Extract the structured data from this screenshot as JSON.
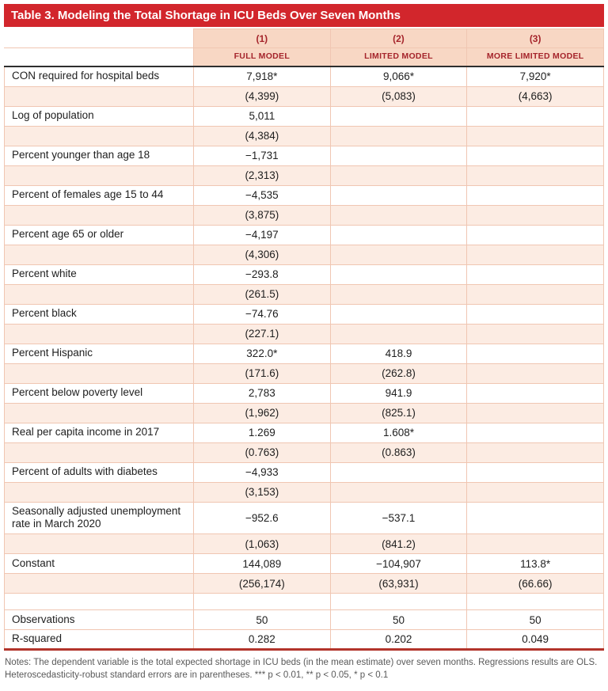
{
  "title": "Table 3. Modeling the Total Shortage in ICU Beds Over Seven Months",
  "columns": {
    "numbers": [
      "(1)",
      "(2)",
      "(3)"
    ],
    "models": [
      "FULL MODEL",
      "LIMITED MODEL",
      "MORE LIMITED MODEL"
    ]
  },
  "variables": [
    {
      "label": "CON required for hospital beds",
      "estimates": [
        "7,918*",
        "9,066*",
        "7,920*"
      ],
      "std_errors": [
        "(4,399)",
        "(5,083)",
        "(4,663)"
      ]
    },
    {
      "label": "Log of population",
      "estimates": [
        "5,011",
        "",
        ""
      ],
      "std_errors": [
        "(4,384)",
        "",
        ""
      ]
    },
    {
      "label": "Percent younger than age 18",
      "estimates": [
        "−1,731",
        "",
        ""
      ],
      "std_errors": [
        "(2,313)",
        "",
        ""
      ]
    },
    {
      "label": "Percent of females age 15 to 44",
      "estimates": [
        "−4,535",
        "",
        ""
      ],
      "std_errors": [
        "(3,875)",
        "",
        ""
      ]
    },
    {
      "label": "Percent age 65 or older",
      "estimates": [
        "−4,197",
        "",
        ""
      ],
      "std_errors": [
        "(4,306)",
        "",
        ""
      ]
    },
    {
      "label": "Percent white",
      "estimates": [
        "−293.8",
        "",
        ""
      ],
      "std_errors": [
        "(261.5)",
        "",
        ""
      ]
    },
    {
      "label": "Percent black",
      "estimates": [
        "−74.76",
        "",
        ""
      ],
      "std_errors": [
        "(227.1)",
        "",
        ""
      ]
    },
    {
      "label": "Percent Hispanic",
      "estimates": [
        "322.0*",
        "418.9",
        ""
      ],
      "std_errors": [
        "(171.6)",
        "(262.8)",
        ""
      ]
    },
    {
      "label": "Percent below poverty level",
      "estimates": [
        "2,783",
        "941.9",
        ""
      ],
      "std_errors": [
        "(1,962)",
        "(825.1)",
        ""
      ]
    },
    {
      "label": "Real per capita income in 2017",
      "estimates": [
        "1.269",
        "1.608*",
        ""
      ],
      "std_errors": [
        "(0.763)",
        "(0.863)",
        ""
      ]
    },
    {
      "label": "Percent of adults with diabetes",
      "estimates": [
        "−4,933",
        "",
        ""
      ],
      "std_errors": [
        "(3,153)",
        "",
        ""
      ]
    },
    {
      "label": "Seasonally adjusted unemployment rate in March 2020",
      "estimates": [
        "−952.6",
        "−537.1",
        ""
      ],
      "std_errors": [
        "(1,063)",
        "(841.2)",
        ""
      ]
    },
    {
      "label": "Constant",
      "estimates": [
        "144,089",
        "−104,907",
        "113.8*"
      ],
      "std_errors": [
        "(256,174)",
        "(63,931)",
        "(66.66)"
      ]
    }
  ],
  "summary": [
    {
      "label": "Observations",
      "values": [
        "50",
        "50",
        "50"
      ]
    },
    {
      "label": "R-squared",
      "values": [
        "0.282",
        "0.202",
        "0.049"
      ]
    }
  ],
  "notes": "Notes: The dependent variable is the total expected shortage in ICU beds (in the mean estimate) over seven months. Regressions results are OLS. Heteroscedasticity-robust standard errors are in parentheses. *** p < 0.01, ** p < 0.05, * p < 0.1",
  "colors": {
    "title_bg": "#d2262c",
    "header_bg": "#f8d7c4",
    "header_text": "#a5242b",
    "se_row_bg": "#fcece3",
    "grid_border": "#f0c6b2",
    "header_rule": "#2e2e2e",
    "bottom_rule": "#b2342b"
  }
}
